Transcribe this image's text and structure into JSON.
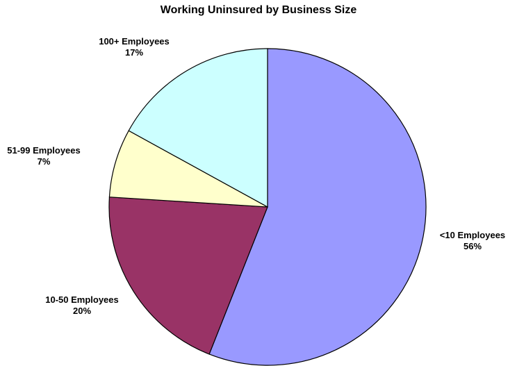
{
  "chart_data": {
    "type": "pie",
    "title": "Working Uninsured by Business Size",
    "slices": [
      {
        "label": "<10  Employees",
        "value": 56,
        "value_label": "56%",
        "color": "#9999ff"
      },
      {
        "label": "10-50  Employees",
        "value": 20,
        "value_label": "20%",
        "color": "#993366"
      },
      {
        "label": "51-99  Employees",
        "value": 7,
        "value_label": "7%",
        "color": "#ffffcc"
      },
      {
        "label": "100+  Employees",
        "value": 17,
        "value_label": "17%",
        "color": "#ccffff"
      }
    ],
    "start": "12 o'clock",
    "direction": "clockwise",
    "legend": "none"
  }
}
